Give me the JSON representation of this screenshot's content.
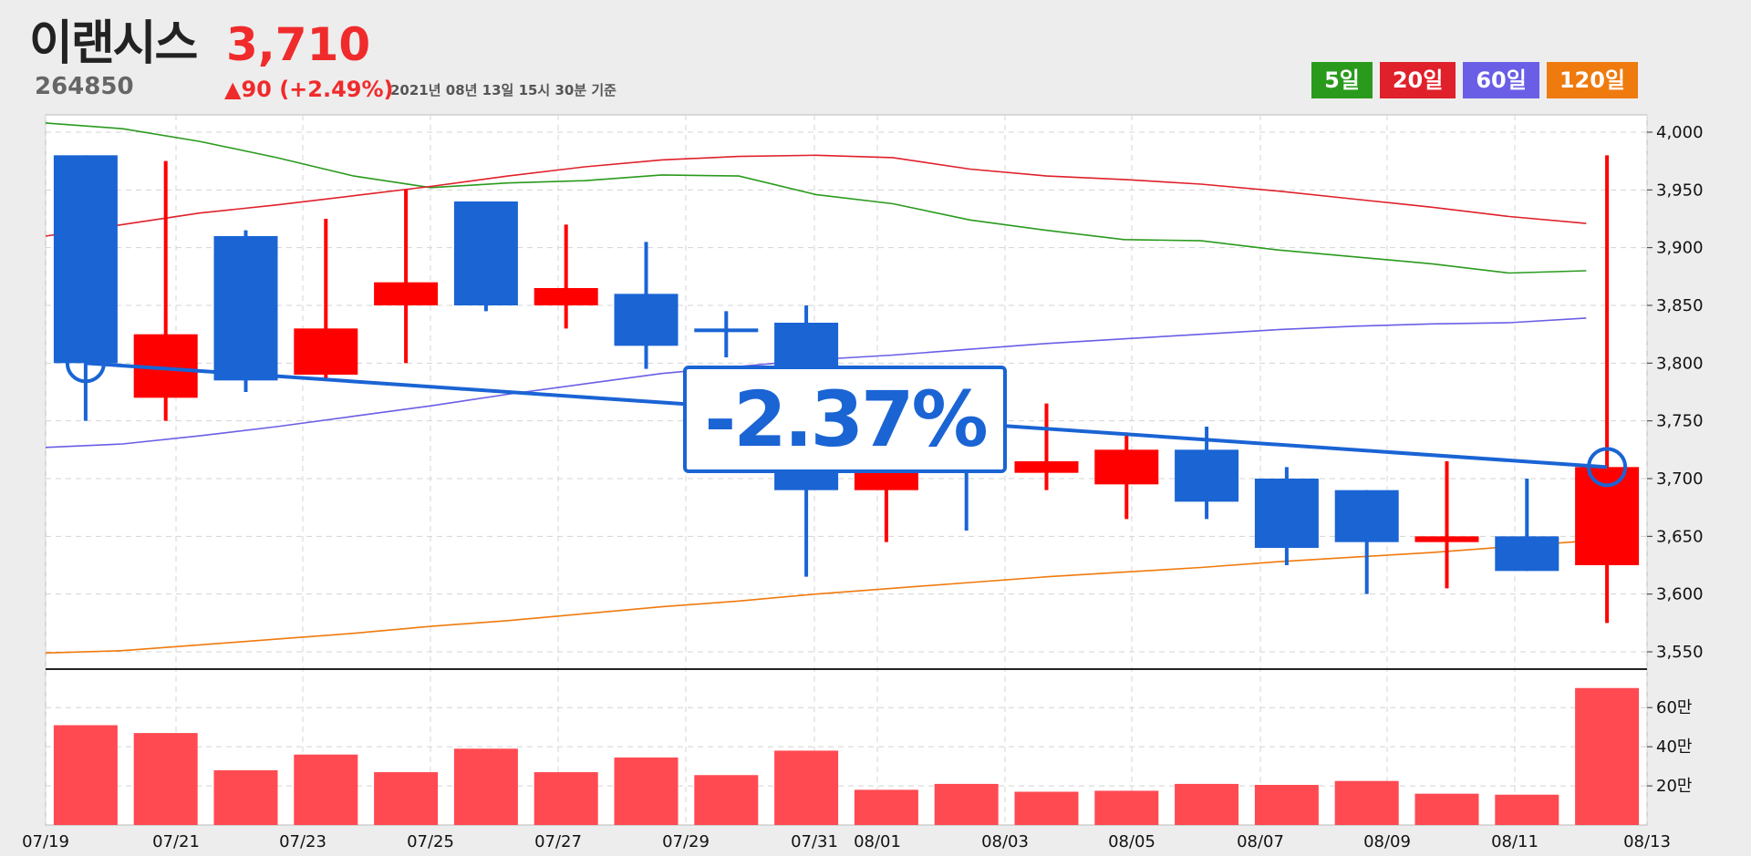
{
  "header": {
    "name": "이랜시스",
    "price": "3,710",
    "code": "264850",
    "change": "▲90 (+2.49%)",
    "date": "2021년 08년 13일 15시 30분 기준"
  },
  "legend": [
    {
      "label": "5일",
      "color": "#2a9a1d"
    },
    {
      "label": "20일",
      "color": "#e0202a"
    },
    {
      "label": "60일",
      "color": "#6a5ee6"
    },
    {
      "label": "120일",
      "color": "#ef7a0e"
    }
  ],
  "annotation": {
    "text": "-2.37%",
    "color": "#1a64d4"
  },
  "colors": {
    "up": "#ff0000",
    "down": "#1a64d4",
    "volume": "#ff4a52"
  },
  "chart_data": {
    "type": "candlestick",
    "x_ticks": [
      "07/19",
      "07/21",
      "07/23",
      "07/25",
      "07/27",
      "07/29",
      "07/31",
      "08/01",
      "08/03",
      "08/05",
      "08/07",
      "08/09",
      "08/11",
      "08/13"
    ],
    "y_ticks": [
      "3,550",
      "3,600",
      "3,650",
      "3,700",
      "3,750",
      "3,800",
      "3,850",
      "3,900",
      "3,950",
      "4,000"
    ],
    "ylim": [
      3535,
      4015
    ],
    "volume_ticks": [
      "20만",
      "40만",
      "60만"
    ],
    "volume_ylim": [
      0,
      750000
    ],
    "candles": [
      {
        "open": 3980,
        "close": 3800,
        "high": 3980,
        "low": 3750,
        "volume": 510000
      },
      {
        "open": 3770,
        "close": 3825,
        "high": 3975,
        "low": 3750,
        "volume": 470000
      },
      {
        "open": 3910,
        "close": 3785,
        "high": 3915,
        "low": 3775,
        "volume": 280000
      },
      {
        "open": 3790,
        "close": 3830,
        "high": 3925,
        "low": 3785,
        "volume": 360000
      },
      {
        "open": 3850,
        "close": 3870,
        "high": 3950,
        "low": 3800,
        "volume": 270000
      },
      {
        "open": 3940,
        "close": 3850,
        "high": 3940,
        "low": 3845,
        "volume": 390000
      },
      {
        "open": 3850,
        "close": 3865,
        "high": 3920,
        "low": 3830,
        "volume": 270000
      },
      {
        "open": 3860,
        "close": 3815,
        "high": 3905,
        "low": 3795,
        "volume": 345000
      },
      {
        "open": 3830,
        "close": 3828,
        "high": 3845,
        "low": 3805,
        "volume": 255000
      },
      {
        "open": 3835,
        "close": 3690,
        "high": 3850,
        "low": 3615,
        "volume": 380000
      },
      {
        "open": 3690,
        "close": 3720,
        "high": 3760,
        "low": 3645,
        "volume": 180000
      },
      {
        "open": 3770,
        "close": 3740,
        "high": 3790,
        "low": 3655,
        "volume": 210000
      },
      {
        "open": 3705,
        "close": 3715,
        "high": 3765,
        "low": 3690,
        "volume": 170000
      },
      {
        "open": 3695,
        "close": 3725,
        "high": 3740,
        "low": 3665,
        "volume": 175000
      },
      {
        "open": 3725,
        "close": 3680,
        "high": 3745,
        "low": 3665,
        "volume": 210000
      },
      {
        "open": 3700,
        "close": 3640,
        "high": 3710,
        "low": 3625,
        "volume": 205000
      },
      {
        "open": 3690,
        "close": 3645,
        "high": 3690,
        "low": 3600,
        "volume": 225000
      },
      {
        "open": 3645,
        "close": 3650,
        "high": 3715,
        "low": 3605,
        "volume": 160000
      },
      {
        "open": 3650,
        "close": 3620,
        "high": 3700,
        "low": 3620,
        "volume": 155000
      },
      {
        "open": 3625,
        "close": 3710,
        "high": 3980,
        "low": 3575,
        "volume": 700000
      }
    ],
    "moving_averages": [
      {
        "name": "5일",
        "color": "#2a9a1d",
        "values": [
          4008,
          4003,
          3992,
          3978,
          3962,
          3952,
          3956,
          3958,
          3963,
          3962,
          3946,
          3938,
          3924,
          3915,
          3907,
          3906,
          3898,
          3892,
          3886,
          3878,
          3880
        ]
      },
      {
        "name": "20일",
        "color": "#e0202a",
        "values": [
          3910,
          3920,
          3930,
          3937,
          3945,
          3953,
          3962,
          3970,
          3976,
          3979,
          3980,
          3978,
          3968,
          3962,
          3959,
          3955,
          3949,
          3942,
          3935,
          3927,
          3921
        ]
      },
      {
        "name": "60일",
        "color": "#6a5ee6",
        "values": [
          3727,
          3730,
          3737,
          3745,
          3754,
          3763,
          3773,
          3782,
          3791,
          3797,
          3803,
          3807,
          3812,
          3817,
          3821,
          3825,
          3829,
          3832,
          3834,
          3835,
          3839
        ]
      },
      {
        "name": "120일",
        "color": "#ef7a0e",
        "values": [
          3549,
          3551,
          3556,
          3561,
          3566,
          3572,
          3577,
          3583,
          3589,
          3594,
          3600,
          3605,
          3610,
          3615,
          3619,
          3623,
          3628,
          3632,
          3636,
          3641,
          3646
        ]
      }
    ],
    "trend_line": {
      "start": 3800,
      "end": 3710
    }
  }
}
